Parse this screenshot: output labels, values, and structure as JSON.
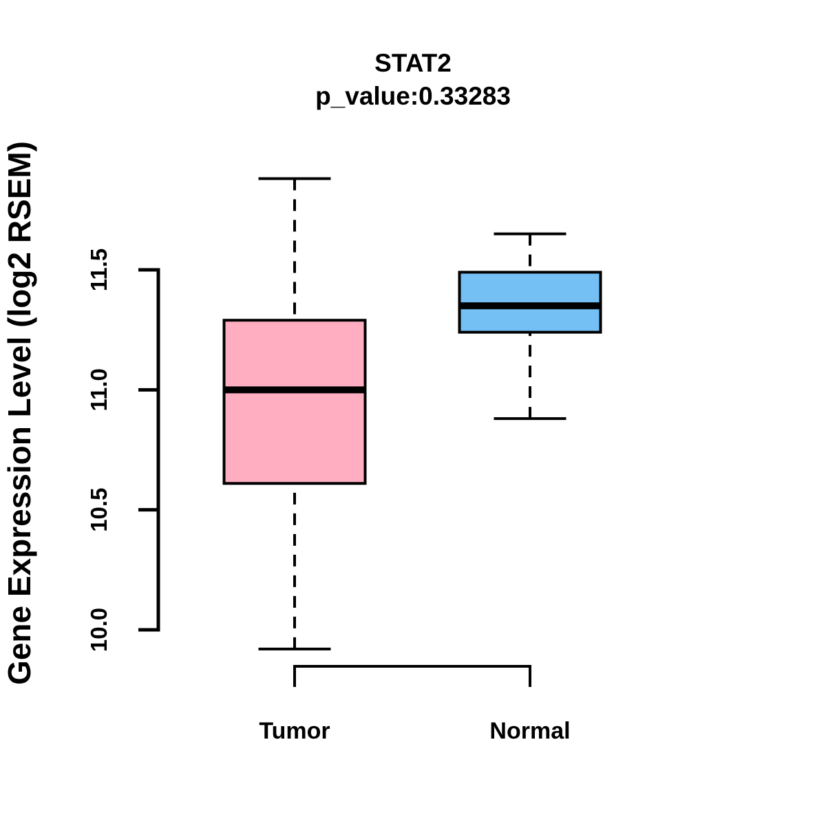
{
  "chart_data": {
    "type": "boxplot",
    "title": "STAT2",
    "subtitle": "p_value:0.33283",
    "ylabel": "Gene Expression Level (log2 RSEM)",
    "xlabel": "",
    "categories": [
      "Tumor",
      "Normal"
    ],
    "series": [
      {
        "name": "Tumor",
        "fill_color": "#FFAEC1",
        "lower_whisker": 9.92,
        "q1": 10.61,
        "median": 11.0,
        "q3": 11.29,
        "upper_whisker": 11.88
      },
      {
        "name": "Normal",
        "fill_color": "#74BFF4",
        "lower_whisker": 10.88,
        "q1": 11.24,
        "median": 11.35,
        "q3": 11.49,
        "upper_whisker": 11.65
      }
    ],
    "yticks": [
      "10.0",
      "10.5",
      "11.0",
      "11.5"
    ],
    "ytick_values": [
      10.0,
      10.5,
      11.0,
      11.5
    ],
    "ylim": [
      9.9,
      11.95
    ],
    "grid": false,
    "legend": "none",
    "line_color": "#000000",
    "background_color": "#FFFFFF"
  }
}
